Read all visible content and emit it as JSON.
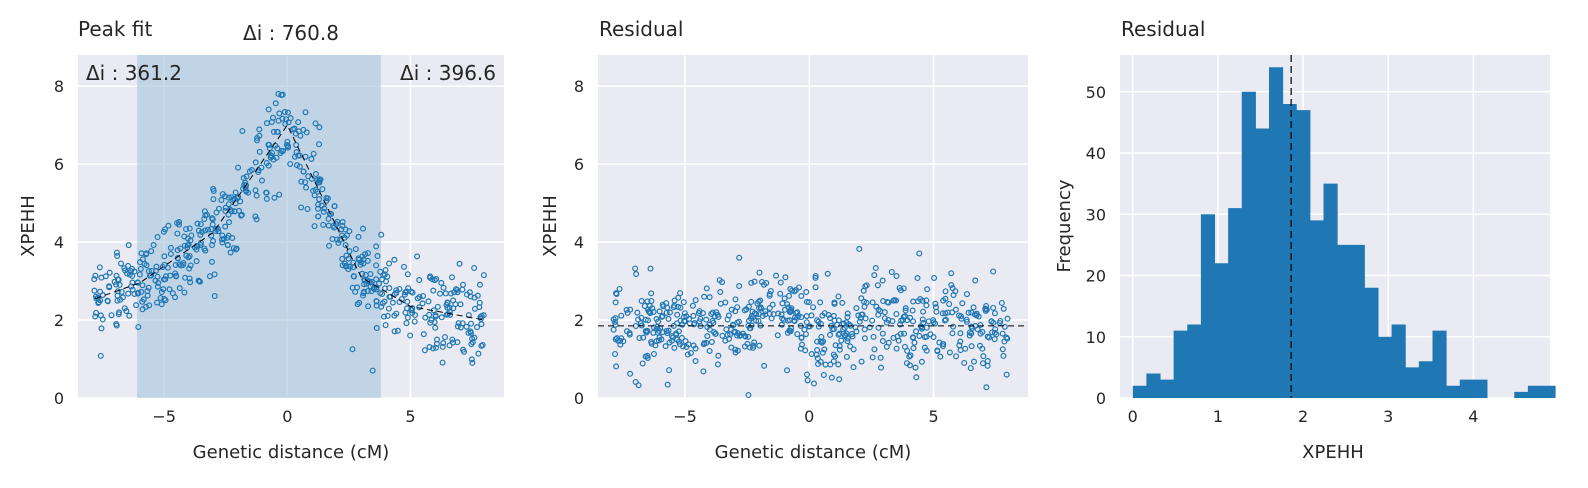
{
  "colors": {
    "background": "#eaeaf2",
    "grid": "#ffffff",
    "marker": "#1f77b4",
    "shade": "#a3c4de",
    "text": "#262626",
    "line": "#000000"
  },
  "chart_data": [
    {
      "type": "scatter",
      "title": "Peak fit",
      "xlabel": "Genetic distance (cM)",
      "ylabel": "XPEHH",
      "xlim": [
        -8.5,
        8.8
      ],
      "ylim": [
        0,
        8.8
      ],
      "xticks": [
        -5,
        0,
        5
      ],
      "xtick_labels": [
        "−5",
        "0",
        "5"
      ],
      "yticks": [
        0,
        2,
        4,
        6,
        8
      ],
      "ytick_labels": [
        "0",
        "2",
        "4",
        "6",
        "8"
      ],
      "grid": true,
      "shaded_region": [
        -6.1,
        3.8
      ],
      "annotations": {
        "center": "Δi : 760.8",
        "left": "Δi : 361.2",
        "right": "Δi : 396.6"
      },
      "fit_line": {
        "style": "dashed",
        "x": [
          -7.8,
          -6.0,
          -3.0,
          0.0,
          3.0,
          5.0,
          8.0
        ],
        "y": [
          2.55,
          2.95,
          4.25,
          7.0,
          3.1,
          2.35,
          2.0
        ]
      },
      "series": [
        {
          "name": "",
          "marker": "open-circle",
          "x_range": [
            -7.9,
            8.0
          ],
          "n_points": 620,
          "mean_curve_x": [
            -7.8,
            -6.0,
            -3.0,
            0.0,
            3.0,
            5.0,
            8.0
          ],
          "mean_curve_y": [
            2.55,
            2.95,
            4.25,
            7.0,
            3.1,
            2.35,
            2.0
          ],
          "spread": 0.55
        }
      ]
    },
    {
      "type": "scatter",
      "title": "Residual",
      "xlabel": "Genetic distance (cM)",
      "ylabel": "XPEHH",
      "xlim": [
        -8.5,
        8.8
      ],
      "ylim": [
        0,
        8.8
      ],
      "xticks": [
        -5,
        0,
        5
      ],
      "xtick_labels": [
        "−5",
        "0",
        "5"
      ],
      "yticks": [
        0,
        2,
        4,
        6,
        8
      ],
      "ytick_labels": [
        "0",
        "2",
        "4",
        "6",
        "8"
      ],
      "grid": true,
      "hline": {
        "y": 1.85,
        "style": "dashed"
      },
      "series": [
        {
          "name": "",
          "marker": "open-circle",
          "x_range": [
            -7.9,
            8.0
          ],
          "n_points": 620,
          "center": 1.85,
          "spread": 0.6
        }
      ]
    },
    {
      "type": "bar",
      "subtype": "histogram",
      "title": "Residual",
      "xlabel": "XPEHH",
      "ylabel": "Frequency",
      "xlim": [
        -0.15,
        4.9
      ],
      "ylim": [
        0,
        56
      ],
      "xticks": [
        0,
        1,
        2,
        3,
        4
      ],
      "xtick_labels": [
        "0",
        "1",
        "2",
        "3",
        "4"
      ],
      "yticks": [
        0,
        10,
        20,
        30,
        40,
        50
      ],
      "ytick_labels": [
        "0",
        "10",
        "20",
        "30",
        "40",
        "50"
      ],
      "grid": true,
      "vline": {
        "x": 1.86,
        "style": "dashed"
      },
      "bin_start": 0.0,
      "bin_width": 0.16,
      "values": [
        2,
        4,
        3,
        11,
        12,
        30,
        22,
        31,
        50,
        44,
        54,
        48,
        47,
        29,
        35,
        25,
        25,
        18,
        10,
        12,
        5,
        6,
        11,
        2,
        3,
        3,
        0,
        0,
        1,
        2,
        2
      ]
    }
  ]
}
